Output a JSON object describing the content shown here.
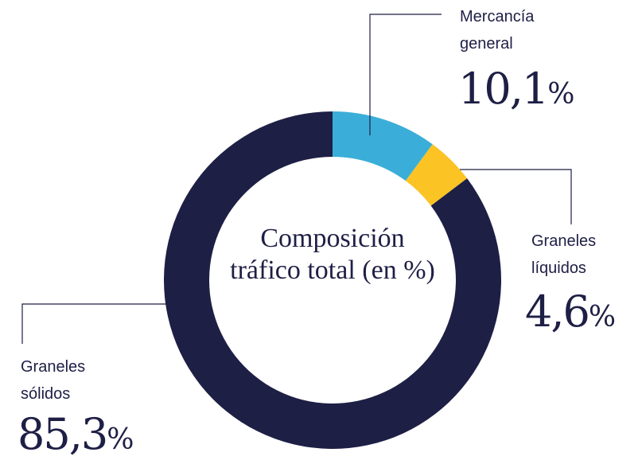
{
  "chart_data": {
    "type": "pie",
    "donut": true,
    "title": "Composición tráfico total (en %)",
    "categories": [
      "Mercancía general",
      "Graneles líquidos",
      "Graneles sólidos"
    ],
    "values": [
      10.1,
      4.6,
      85.3
    ],
    "value_labels": [
      "10,1%",
      "4,6%",
      "85,3%"
    ],
    "colors": [
      "#3aaed8",
      "#fcc324",
      "#1e1f45"
    ]
  }
}
